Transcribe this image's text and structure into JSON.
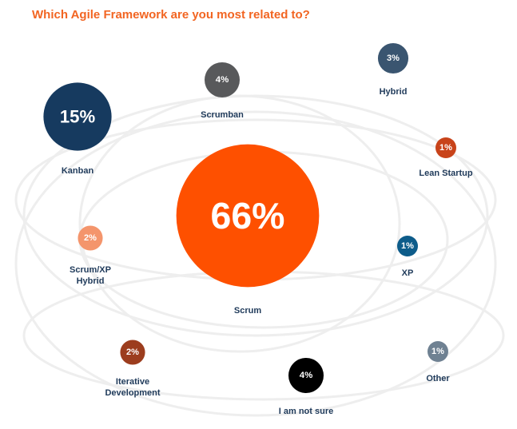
{
  "chart_data": {
    "type": "bubble",
    "title": "Which Agile Framework are you most related to?",
    "unit": "%",
    "items": [
      {
        "label": "Kanban",
        "value": 15,
        "display": "15%",
        "color": "#163a5f"
      },
      {
        "label": "Scrumban",
        "value": 4,
        "display": "4%",
        "color": "#58595b"
      },
      {
        "label": "Hybrid",
        "value": 3,
        "display": "3%",
        "color": "#3a5570"
      },
      {
        "label": "Lean Startup",
        "value": 1,
        "display": "1%",
        "color": "#c8431a"
      },
      {
        "label": "Scrum",
        "value": 66,
        "display": "66%",
        "color": "#fe5000"
      },
      {
        "label": "Scrum/XP\nHybrid",
        "value": 2,
        "display": "2%",
        "color": "#f4956c"
      },
      {
        "label": "XP",
        "value": 1,
        "display": "1%",
        "color": "#0d5c8a"
      },
      {
        "label": "Iterative\nDevelopment",
        "value": 2,
        "display": "2%",
        "color": "#9c3d1e"
      },
      {
        "label": "I am not sure",
        "value": 4,
        "display": "4%",
        "color": "#000000"
      },
      {
        "label": "Other",
        "value": 1,
        "display": "1%",
        "color": "#6f8192"
      }
    ]
  }
}
